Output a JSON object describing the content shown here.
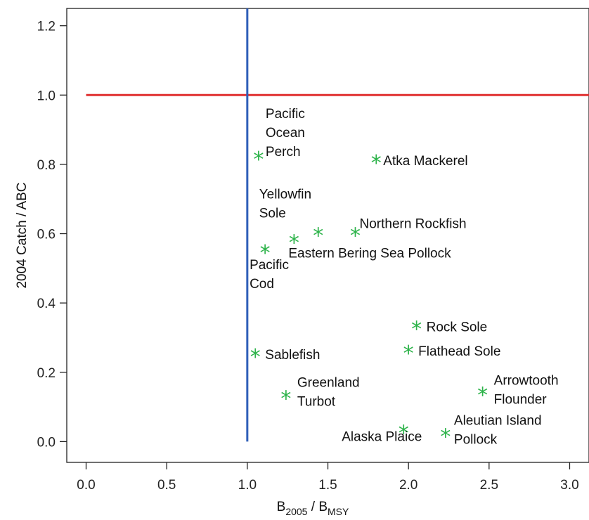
{
  "chart_data": {
    "type": "scatter",
    "title": "",
    "xlabel": {
      "main": "B",
      "sub1": "2005",
      "sep": " / B",
      "sub2": "MSY"
    },
    "ylabel": "2004 Catch / ABC",
    "xlim": [
      -0.12,
      3.12
    ],
    "ylim": [
      -0.06,
      1.25
    ],
    "x_ticks": [
      "0.0",
      "0.5",
      "1.0",
      "1.5",
      "2.0",
      "2.5",
      "3.0"
    ],
    "y_ticks": [
      "0.0",
      "0.2",
      "0.4",
      "0.6",
      "0.8",
      "1.0",
      "1.2"
    ],
    "grid": false,
    "marker": "*",
    "marker_color": "#2db34a",
    "reference_lines": [
      {
        "orientation": "horizontal",
        "y": 1.0,
        "x_from": 0.0,
        "color": "#e03030"
      },
      {
        "orientation": "vertical",
        "x": 1.0,
        "y_from": 0.0,
        "color": "#2f5fb8"
      }
    ],
    "points": [
      {
        "x": 1.07,
        "y": 0.82,
        "label": [
          "Pacific",
          "Ocean",
          "Perch"
        ]
      },
      {
        "x": 1.8,
        "y": 0.81,
        "label": [
          "Atka Mackerel"
        ]
      },
      {
        "x": 1.44,
        "y": 0.6,
        "label": [
          "Yellowfin",
          "Sole"
        ]
      },
      {
        "x": 1.67,
        "y": 0.6,
        "label": [
          "Northern Rockfish"
        ]
      },
      {
        "x": 1.29,
        "y": 0.58,
        "label": [
          "Eastern Bering Sea Pollock"
        ]
      },
      {
        "x": 1.11,
        "y": 0.55,
        "label": [
          "Pacific",
          "Cod"
        ]
      },
      {
        "x": 2.05,
        "y": 0.33,
        "label": [
          "Rock Sole"
        ]
      },
      {
        "x": 2.0,
        "y": 0.26,
        "label": [
          "Flathead Sole"
        ]
      },
      {
        "x": 1.05,
        "y": 0.25,
        "label": [
          "Sablefish"
        ]
      },
      {
        "x": 2.46,
        "y": 0.14,
        "label": [
          "Arrowtooth",
          "Flounder"
        ]
      },
      {
        "x": 1.24,
        "y": 0.13,
        "label": [
          "Greenland",
          "Turbot"
        ]
      },
      {
        "x": 1.97,
        "y": 0.03,
        "label": [
          "Alaska Plaice"
        ]
      },
      {
        "x": 2.23,
        "y": 0.02,
        "label": [
          "Aleutian Island",
          "Pollock"
        ]
      }
    ]
  }
}
